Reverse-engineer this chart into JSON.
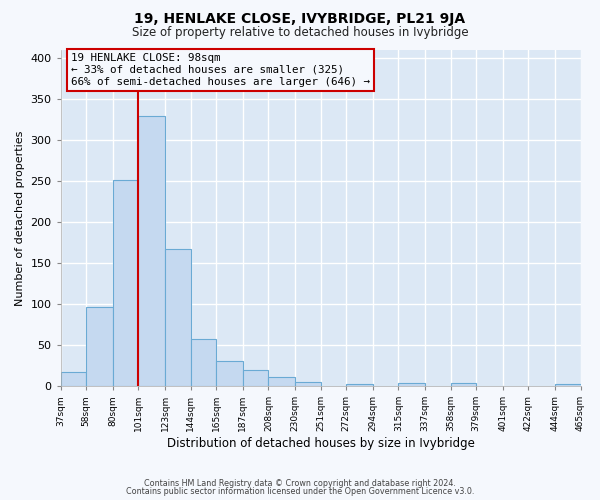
{
  "title": "19, HENLAKE CLOSE, IVYBRIDGE, PL21 9JA",
  "subtitle": "Size of property relative to detached houses in Ivybridge",
  "xlabel": "Distribution of detached houses by size in Ivybridge",
  "ylabel": "Number of detached properties",
  "bin_edges": [
    37,
    58,
    80,
    101,
    123,
    144,
    165,
    187,
    208,
    230,
    251,
    272,
    294,
    315,
    337,
    358,
    379,
    401,
    422,
    444,
    465
  ],
  "bar_heights": [
    17,
    97,
    251,
    330,
    167,
    58,
    30,
    19,
    11,
    5,
    0,
    3,
    0,
    4,
    0,
    4,
    0,
    0,
    0,
    3
  ],
  "bar_color": "#c5d9f0",
  "bar_edge_color": "#6aaad4",
  "vline_x": 101,
  "vline_color": "#cc0000",
  "annotation_title": "19 HENLAKE CLOSE: 98sqm",
  "annotation_line1": "← 33% of detached houses are smaller (325)",
  "annotation_line2": "66% of semi-detached houses are larger (646) →",
  "annotation_box_edgecolor": "#cc0000",
  "ylim": [
    0,
    410
  ],
  "tick_labels": [
    "37sqm",
    "58sqm",
    "80sqm",
    "101sqm",
    "123sqm",
    "144sqm",
    "165sqm",
    "187sqm",
    "208sqm",
    "230sqm",
    "251sqm",
    "272sqm",
    "294sqm",
    "315sqm",
    "337sqm",
    "358sqm",
    "379sqm",
    "401sqm",
    "422sqm",
    "444sqm",
    "465sqm"
  ],
  "plot_bg_color": "#dce8f5",
  "fig_bg_color": "#f5f8fd",
  "grid_color": "#ffffff",
  "footer_line1": "Contains HM Land Registry data © Crown copyright and database right 2024.",
  "footer_line2": "Contains public sector information licensed under the Open Government Licence v3.0."
}
